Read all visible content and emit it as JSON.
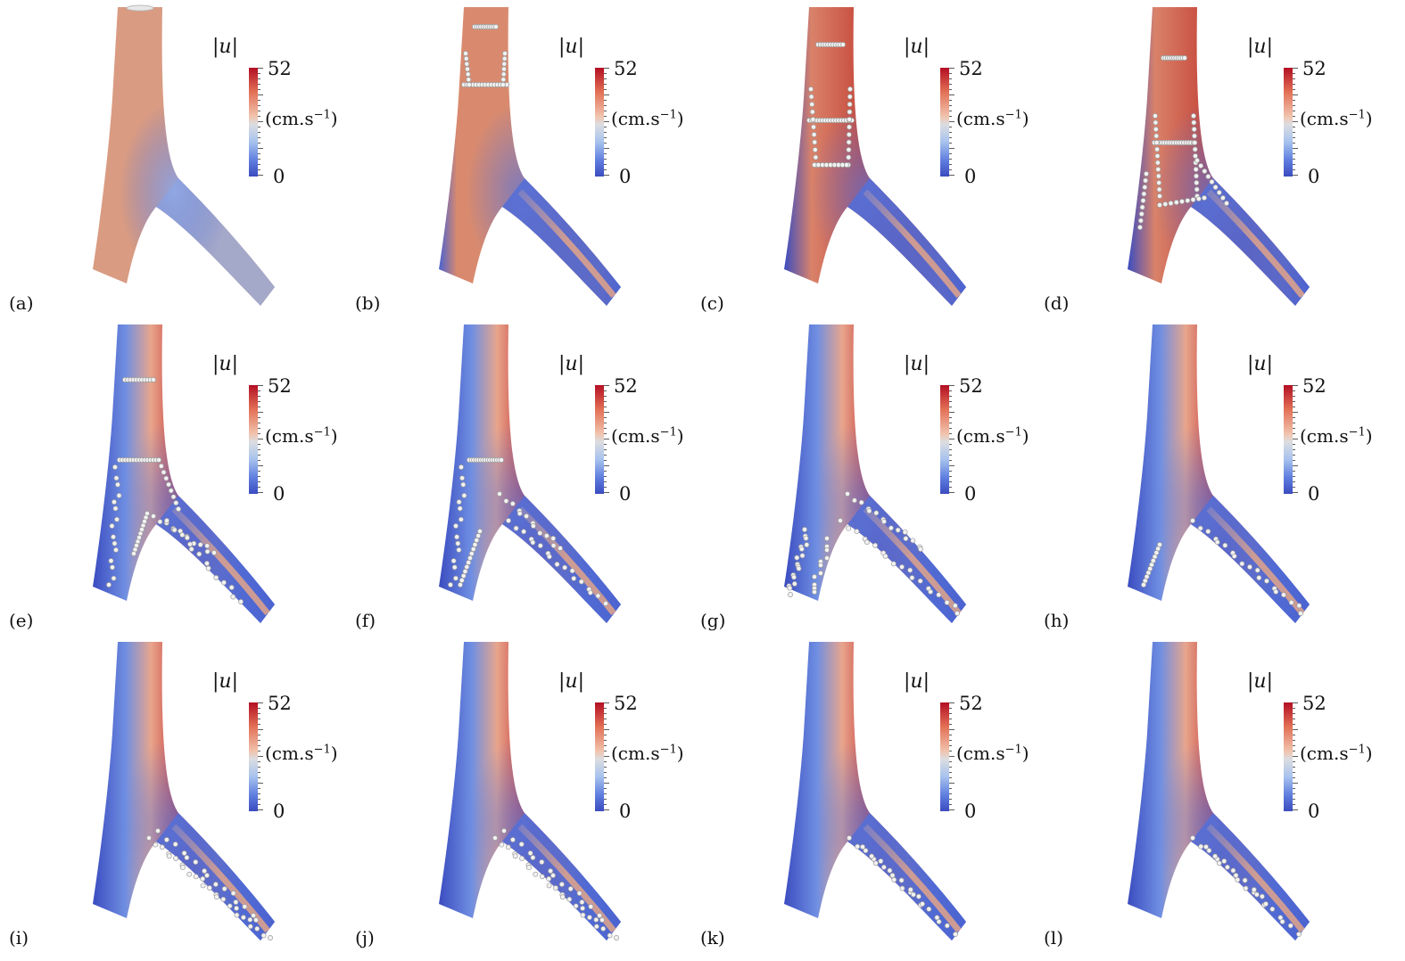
{
  "figure": {
    "colorbar": {
      "title": "|u|",
      "max": "52",
      "min": "0",
      "units_base": "(cm.s",
      "units_exp": "−1",
      "units_close": ")",
      "colors": [
        "#b30f23",
        "#e26f55",
        "#f1c4ae",
        "#dcdde0",
        "#a8c3ee",
        "#5f7edf",
        "#3b4cc0"
      ]
    },
    "panels": [
      {
        "label": "(a)",
        "core": "none",
        "particles": "none"
      },
      {
        "label": "(b)",
        "core": "weak",
        "particles": "top"
      },
      {
        "label": "(c)",
        "core": "medium",
        "particles": "upper"
      },
      {
        "label": "(d)",
        "core": "medium",
        "particles": "junction"
      },
      {
        "label": "(e)",
        "core": "strong",
        "particles": "spread"
      },
      {
        "label": "(f)",
        "core": "strong",
        "particles": "lower"
      },
      {
        "label": "(g)",
        "core": "strong",
        "particles": "branches"
      },
      {
        "label": "(h)",
        "core": "strong",
        "particles": "branches-sparse"
      },
      {
        "label": "(i)",
        "core": "strong",
        "particles": "right-wall"
      },
      {
        "label": "(j)",
        "core": "strong",
        "particles": "right-wall"
      },
      {
        "label": "(k)",
        "core": "strong",
        "particles": "right-wall-sparse"
      },
      {
        "label": "(l)",
        "core": "strong",
        "particles": "right-wall-sparse"
      }
    ]
  }
}
